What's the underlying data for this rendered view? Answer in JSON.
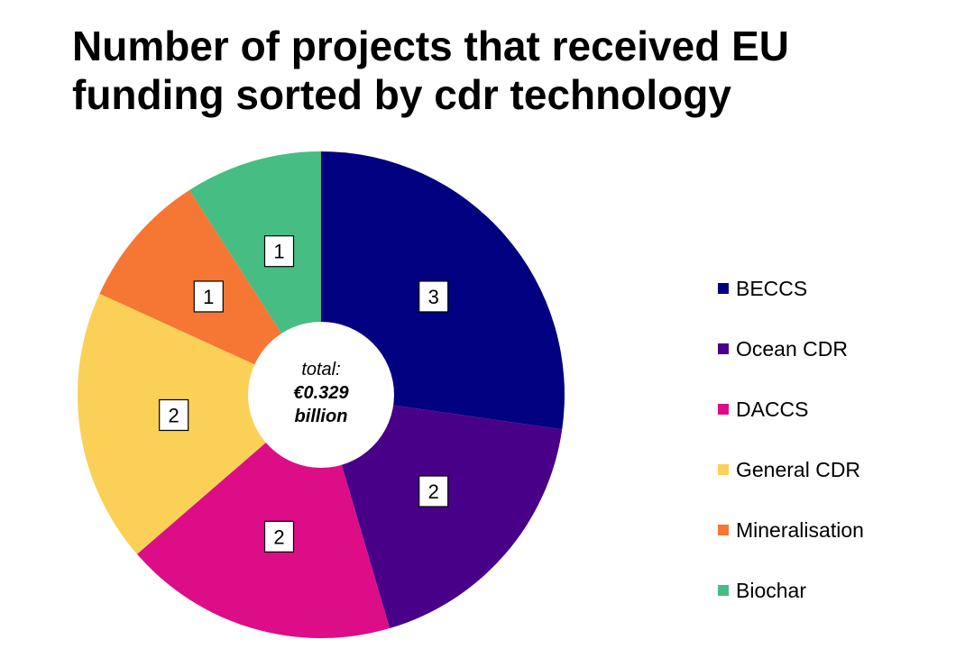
{
  "chart_data": {
    "type": "pie",
    "title_lines": [
      "Number of projects that received EU",
      "funding sorted by cdr technology"
    ],
    "center_label": {
      "prefix": "total:",
      "value": "€0.329",
      "unit": "billion"
    },
    "legend_position": "right",
    "slices": [
      {
        "label": "BECCS",
        "value": 3,
        "color": "#000080"
      },
      {
        "label": "Ocean CDR",
        "value": 2,
        "color": "#480088"
      },
      {
        "label": "DACCS",
        "value": 2,
        "color": "#DD0D88"
      },
      {
        "label": "General CDR",
        "value": 2,
        "color": "#FBD057"
      },
      {
        "label": "Mineralisation",
        "value": 1,
        "color": "#F67633"
      },
      {
        "label": "Biochar",
        "value": 1,
        "color": "#46BD82"
      }
    ]
  }
}
